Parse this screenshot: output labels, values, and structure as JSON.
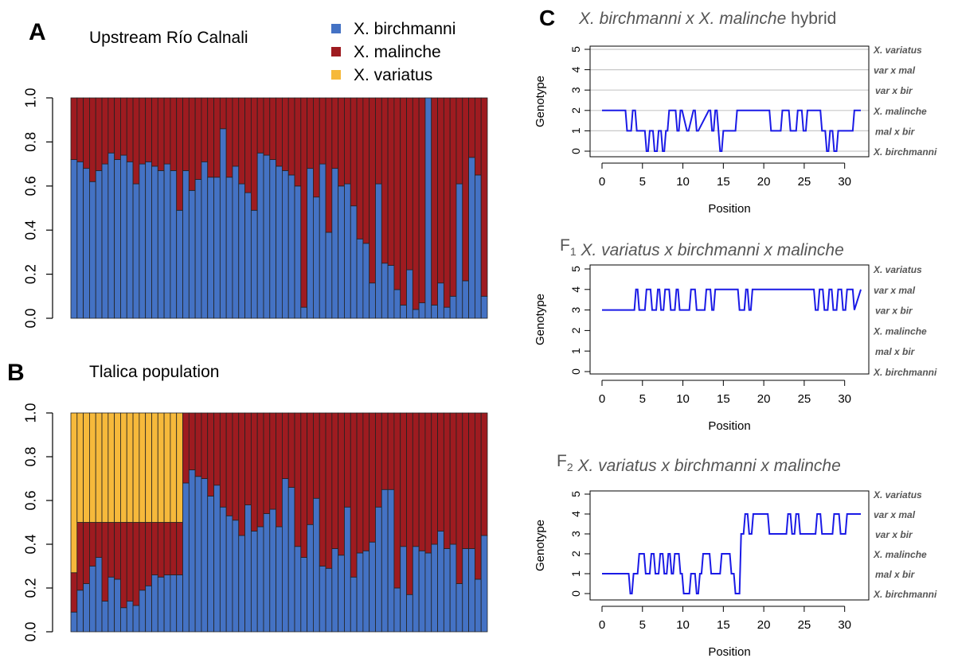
{
  "legend": [
    {
      "label": "X. birchmanni",
      "color": "#4472c4"
    },
    {
      "label": "X. malinche",
      "color": "#9e1b20"
    },
    {
      "label": "X. variatus",
      "color": "#f6b93b"
    }
  ],
  "chart_data": [
    {
      "id": "A",
      "type": "bar",
      "stacked": true,
      "panel_letter": "A",
      "title": "Upstream Río Calnali",
      "ylim": [
        0,
        1
      ],
      "yticks": [
        "0.0",
        "0.2",
        "0.4",
        "0.6",
        "0.8",
        "1.0"
      ],
      "series": [
        {
          "name": "X. birchmanni",
          "values": [
            0.72,
            0.71,
            0.68,
            0.62,
            0.67,
            0.7,
            0.75,
            0.72,
            0.74,
            0.71,
            0.61,
            0.7,
            0.71,
            0.69,
            0.67,
            0.7,
            0.67,
            0.49,
            0.67,
            0.58,
            0.63,
            0.71,
            0.64,
            0.64,
            0.86,
            0.64,
            0.69,
            0.61,
            0.57,
            0.49,
            0.75,
            0.74,
            0.72,
            0.69,
            0.67,
            0.65,
            0.6,
            0.05,
            0.68,
            0.55,
            0.7,
            0.39,
            0.68,
            0.6,
            0.61,
            0.51,
            0.36,
            0.34,
            0.16,
            0.61,
            0.25,
            0.24,
            0.13,
            0.06,
            0.22,
            0.04,
            0.07,
            1.0,
            0.06,
            0.16,
            0.05,
            0.1,
            0.61,
            0.17,
            0.73,
            0.65,
            0.1
          ]
        }
      ]
    },
    {
      "id": "B",
      "type": "bar",
      "stacked": true,
      "panel_letter": "B",
      "title": "Tlalica population",
      "ylim": [
        0,
        1
      ],
      "yticks": [
        "0.0",
        "0.2",
        "0.4",
        "0.6",
        "0.8",
        "1.0"
      ],
      "series": [
        {
          "name": "X. birchmanni",
          "values": [
            0.09,
            0.19,
            0.22,
            0.3,
            0.34,
            0.14,
            0.25,
            0.24,
            0.11,
            0.14,
            0.12,
            0.19,
            0.21,
            0.26,
            0.25,
            0.26,
            0.26,
            0.26,
            0.68,
            0.74,
            0.71,
            0.7,
            0.62,
            0.67,
            0.57,
            0.53,
            0.51,
            0.44,
            0.58,
            0.46,
            0.48,
            0.54,
            0.56,
            0.48,
            0.7,
            0.66,
            0.39,
            0.34,
            0.49,
            0.61,
            0.3,
            0.29,
            0.38,
            0.35,
            0.57,
            0.25,
            0.36,
            0.37,
            0.41,
            0.57,
            0.65,
            0.65,
            0.2,
            0.39,
            0.17,
            0.39,
            0.37,
            0.36,
            0.4,
            0.46,
            0.38,
            0.4,
            0.22,
            0.38,
            0.38,
            0.24,
            0.44
          ]
        },
        {
          "name": "X. malinche",
          "values": [
            0.18,
            0.31,
            0.28,
            0.2,
            0.16,
            0.36,
            0.25,
            0.26,
            0.39,
            0.36,
            0.38,
            0.31,
            0.29,
            0.24,
            0.25,
            0.24,
            0.24,
            0.24,
            0.32,
            0.26,
            0.29,
            0.3,
            0.38,
            0.33,
            0.43,
            0.47,
            0.49,
            0.56,
            0.42,
            0.54,
            0.52,
            0.46,
            0.44,
            0.52,
            0.3,
            0.34,
            0.61,
            0.66,
            0.51,
            0.39,
            0.7,
            0.71,
            0.62,
            0.65,
            0.43,
            0.75,
            0.64,
            0.63,
            0.59,
            0.43,
            0.35,
            0.35,
            0.8,
            0.61,
            0.83,
            0.61,
            0.63,
            0.64,
            0.6,
            0.54,
            0.62,
            0.6,
            0.78,
            0.62,
            0.62,
            0.76,
            0.56
          ]
        }
      ]
    },
    {
      "id": "C1",
      "type": "line",
      "panel_letter": "C",
      "title_parts": [
        {
          "text": "X. birchmanni x X. malinche",
          "italic": true,
          "sub": ""
        },
        {
          "text": " hybrid",
          "italic": false,
          "sub": ""
        }
      ],
      "xlabel": "Position",
      "ylabel": "Genotype",
      "xlim": [
        0,
        32
      ],
      "ylim": [
        0,
        5
      ],
      "xticks": [
        0,
        5,
        10,
        15,
        20,
        25,
        30
      ],
      "yticks": [
        0,
        1,
        2,
        3,
        4,
        5
      ],
      "grid": true,
      "genotype_labels": [
        "X. birchmanni",
        "mal x bir",
        "X. malinche",
        "var x bir",
        "var x mal",
        "X. variatus"
      ],
      "x": [
        0,
        2.9,
        3.1,
        3.6,
        3.8,
        4.1,
        4.3,
        5.3,
        5.5,
        5.7,
        5.9,
        6.3,
        6.5,
        6.8,
        7.0,
        7.3,
        7.5,
        7.7,
        7.9,
        8.1,
        8.3,
        9.1,
        9.3,
        9.5,
        9.7,
        9.9,
        10.5,
        10.7,
        11.3,
        11.5,
        11.7,
        11.9,
        13.2,
        13.4,
        13.6,
        13.8,
        14.0,
        14.2,
        14.6,
        14.8,
        15.0,
        16.5,
        16.7,
        20.7,
        20.9,
        22.1,
        22.3,
        23.1,
        23.3,
        24.0,
        24.2,
        24.7,
        24.9,
        25.2,
        25.4,
        27.0,
        27.2,
        27.6,
        27.8,
        28.0,
        28.2,
        28.5,
        28.7,
        29.0,
        29.2,
        30.0,
        30.2,
        31.0,
        31.2,
        32.0
      ],
      "y": [
        2,
        2,
        1,
        1,
        2,
        2,
        1,
        1,
        0,
        0,
        1,
        1,
        0,
        0,
        1,
        1,
        0,
        0,
        1,
        1,
        2,
        2,
        1,
        1,
        2,
        2,
        1,
        1,
        2,
        2,
        1,
        1,
        2,
        2,
        1,
        1,
        2,
        2,
        0,
        0,
        1,
        1,
        2,
        2,
        1,
        1,
        2,
        2,
        1,
        1,
        2,
        2,
        1,
        1,
        2,
        2,
        1,
        1,
        0,
        0,
        1,
        1,
        0,
        0,
        1,
        1,
        1,
        1,
        2,
        2
      ]
    },
    {
      "id": "C2",
      "type": "line",
      "panel_letter": "",
      "title_parts": [
        {
          "text": "F",
          "italic": false,
          "sub": "1"
        },
        {
          "text": " X. variatus x birchmanni x malinche",
          "italic": true,
          "sub": ""
        }
      ],
      "xlabel": "Position",
      "ylabel": "Genotype",
      "xlim": [
        0,
        32
      ],
      "ylim": [
        0,
        5
      ],
      "xticks": [
        0,
        5,
        10,
        15,
        20,
        25,
        30
      ],
      "yticks": [
        0,
        1,
        2,
        3,
        4,
        5
      ],
      "grid": false,
      "genotype_labels": [
        "X. birchmanni",
        "mal x bir",
        "X. malinche",
        "var x bir",
        "var x mal",
        "X. variatus"
      ],
      "x": [
        0,
        4.0,
        4.2,
        4.4,
        4.6,
        5.3,
        5.5,
        6.0,
        6.2,
        6.7,
        6.9,
        7.1,
        7.3,
        7.6,
        7.8,
        8.3,
        8.5,
        9.0,
        9.2,
        9.4,
        9.6,
        10.8,
        11.0,
        11.5,
        11.7,
        12.7,
        12.9,
        13.4,
        13.6,
        13.8,
        14.0,
        16.8,
        17.0,
        17.6,
        17.8,
        18.0,
        18.2,
        18.4,
        18.6,
        24.0,
        24.2,
        26.2,
        26.4,
        26.7,
        26.9,
        27.3,
        27.5,
        27.9,
        28.1,
        28.4,
        28.6,
        29.0,
        29.2,
        29.6,
        29.8,
        30.1,
        30.3,
        31.0,
        31.2,
        32.0
      ],
      "y": [
        3,
        3,
        4,
        4,
        3,
        3,
        4,
        4,
        3,
        3,
        4,
        4,
        3,
        3,
        4,
        4,
        3,
        3,
        4,
        4,
        3,
        3,
        4,
        4,
        3,
        3,
        4,
        4,
        3,
        3,
        4,
        4,
        3,
        3,
        4,
        4,
        3,
        3,
        4,
        4,
        4,
        4,
        3,
        3,
        4,
        4,
        3,
        3,
        4,
        4,
        3,
        3,
        4,
        4,
        3,
        3,
        4,
        4,
        3,
        4
      ]
    },
    {
      "id": "C3",
      "type": "line",
      "panel_letter": "",
      "title_parts": [
        {
          "text": "F",
          "italic": false,
          "sub": "2"
        },
        {
          "text": " X. variatus x birchmanni x malinche",
          "italic": true,
          "sub": ""
        }
      ],
      "xlabel": "Position",
      "ylabel": "Genotype",
      "xlim": [
        0,
        32
      ],
      "ylim": [
        0,
        5
      ],
      "xticks": [
        0,
        5,
        10,
        15,
        20,
        25,
        30
      ],
      "yticks": [
        0,
        1,
        2,
        3,
        4,
        5
      ],
      "grid": false,
      "genotype_labels": [
        "X. birchmanni",
        "mal x bir",
        "X. malinche",
        "var x bir",
        "var x mal",
        "X. variatus"
      ],
      "x": [
        0,
        3.3,
        3.5,
        3.7,
        3.9,
        4.4,
        4.6,
        5.2,
        5.4,
        5.9,
        6.1,
        6.4,
        6.6,
        7.0,
        7.2,
        7.5,
        7.7,
        8.0,
        8.2,
        8.4,
        8.6,
        8.8,
        9.0,
        9.5,
        9.7,
        9.9,
        10.1,
        10.8,
        11.0,
        11.5,
        11.7,
        11.9,
        12.1,
        12.3,
        12.5,
        13.3,
        13.5,
        14.6,
        14.8,
        15.8,
        16.0,
        16.3,
        16.5,
        17.0,
        17.2,
        17.5,
        17.7,
        18.0,
        18.2,
        18.5,
        18.7,
        20.5,
        20.7,
        22.8,
        23.0,
        23.3,
        23.5,
        23.8,
        24.0,
        24.3,
        24.5,
        26.4,
        26.6,
        27.0,
        27.2,
        28.5,
        28.7,
        29.3,
        29.5,
        30.1,
        30.3,
        31.0,
        31.2,
        32.0
      ],
      "y": [
        1,
        1,
        0,
        0,
        1,
        1,
        2,
        2,
        1,
        1,
        2,
        2,
        1,
        1,
        2,
        2,
        1,
        1,
        2,
        2,
        1,
        1,
        2,
        2,
        1,
        1,
        0,
        0,
        1,
        1,
        0,
        0,
        1,
        1,
        2,
        2,
        1,
        1,
        2,
        2,
        1,
        1,
        0,
        0,
        3,
        3,
        4,
        4,
        3,
        3,
        4,
        4,
        3,
        3,
        4,
        4,
        3,
        3,
        4,
        4,
        3,
        3,
        4,
        4,
        3,
        3,
        4,
        4,
        3,
        3,
        4,
        4,
        4,
        4
      ]
    }
  ]
}
